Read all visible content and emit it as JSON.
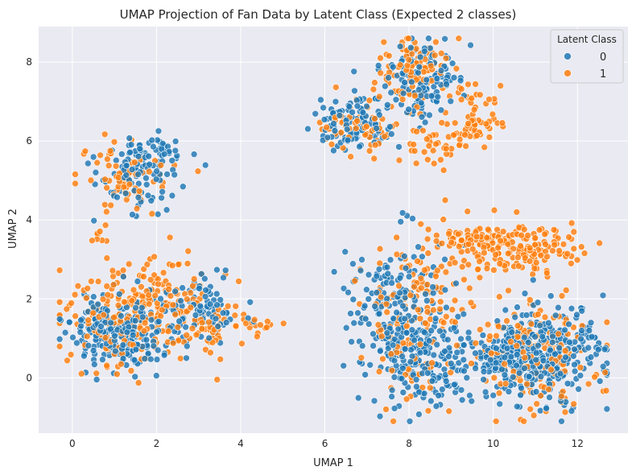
{
  "chart_data": {
    "type": "scatter",
    "title": "UMAP Projection of Fan Data by Latent Class (Expected 2 classes)",
    "xlabel": "UMAP 1",
    "ylabel": "UMAP 2",
    "xlim": [
      -0.8,
      13.2
    ],
    "ylim": [
      -1.4,
      8.9
    ],
    "xticks": [
      0,
      2,
      4,
      6,
      8,
      10,
      12
    ],
    "yticks": [
      0,
      2,
      4,
      6,
      8
    ],
    "grid": true,
    "legend": {
      "title": "Latent Class",
      "placement": "top-right",
      "entries": [
        "0",
        "1"
      ]
    },
    "series": [
      {
        "name": "0",
        "color": "#1f77b4",
        "clusters": [
          {
            "cx": 0.9,
            "cy": 1.3,
            "sx": 0.5,
            "sy": 0.45,
            "n": 170
          },
          {
            "cx": 1.5,
            "cy": 0.8,
            "sx": 0.35,
            "sy": 0.3,
            "n": 60
          },
          {
            "cx": 3.0,
            "cy": 1.7,
            "sx": 0.5,
            "sy": 0.5,
            "n": 110
          },
          {
            "cx": 1.5,
            "cy": 5.2,
            "sx": 0.55,
            "sy": 0.45,
            "n": 80
          },
          {
            "cx": 1.9,
            "cy": 5.7,
            "sx": 0.35,
            "sy": 0.25,
            "n": 40
          },
          {
            "cx": 6.8,
            "cy": 6.4,
            "sx": 0.45,
            "sy": 0.35,
            "n": 120
          },
          {
            "cx": 8.3,
            "cy": 7.5,
            "sx": 0.45,
            "sy": 0.5,
            "n": 130
          },
          {
            "cx": 7.7,
            "cy": 1.5,
            "sx": 0.55,
            "sy": 1.0,
            "n": 230
          },
          {
            "cx": 8.7,
            "cy": 0.4,
            "sx": 0.55,
            "sy": 0.55,
            "n": 120
          },
          {
            "cx": 11.2,
            "cy": 0.6,
            "sx": 0.75,
            "sy": 0.6,
            "n": 320
          },
          {
            "cx": 10.3,
            "cy": 0.4,
            "sx": 0.5,
            "sy": 0.4,
            "n": 80
          }
        ]
      },
      {
        "name": "1",
        "color": "#ff7f0e",
        "clusters": [
          {
            "cx": 1.2,
            "cy": 1.5,
            "sx": 0.7,
            "sy": 0.6,
            "n": 170
          },
          {
            "cx": 2.4,
            "cy": 2.3,
            "sx": 0.6,
            "sy": 0.45,
            "n": 70
          },
          {
            "cx": 3.1,
            "cy": 1.3,
            "sx": 0.55,
            "sy": 0.4,
            "n": 60
          },
          {
            "cx": 4.2,
            "cy": 1.35,
            "sx": 0.3,
            "sy": 0.05,
            "n": 12
          },
          {
            "cx": 1.3,
            "cy": 5.2,
            "sx": 0.55,
            "sy": 0.45,
            "n": 70
          },
          {
            "cx": 0.6,
            "cy": 3.6,
            "sx": 0.1,
            "sy": 0.1,
            "n": 8
          },
          {
            "cx": 6.9,
            "cy": 6.3,
            "sx": 0.45,
            "sy": 0.35,
            "n": 60
          },
          {
            "cx": 8.2,
            "cy": 7.8,
            "sx": 0.5,
            "sy": 0.45,
            "n": 110
          },
          {
            "cx": 8.6,
            "cy": 5.9,
            "sx": 0.4,
            "sy": 0.35,
            "n": 40
          },
          {
            "cx": 9.6,
            "cy": 6.6,
            "sx": 0.3,
            "sy": 0.45,
            "n": 50
          },
          {
            "cx": 10.6,
            "cy": 3.3,
            "sx": 0.7,
            "sy": 0.35,
            "n": 170
          },
          {
            "cx": 9.4,
            "cy": 3.5,
            "sx": 0.45,
            "sy": 0.2,
            "n": 40
          },
          {
            "cx": 8.1,
            "cy": 1.5,
            "sx": 0.6,
            "sy": 1.0,
            "n": 160
          },
          {
            "cx": 11.0,
            "cy": 0.6,
            "sx": 0.75,
            "sy": 0.6,
            "n": 170
          }
        ]
      }
    ]
  }
}
